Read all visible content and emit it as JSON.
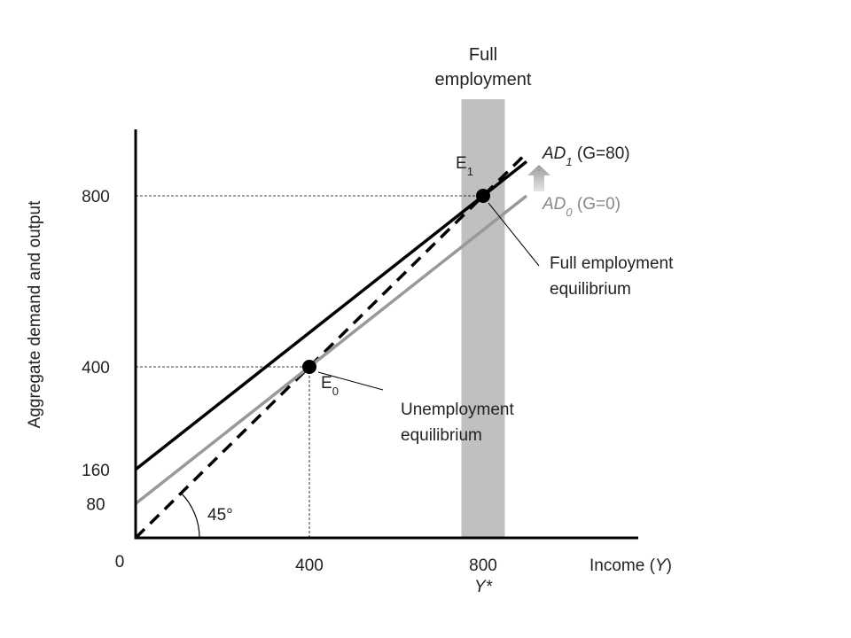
{
  "chart_data": {
    "type": "line",
    "title": "",
    "xlabel": "Income (Y)",
    "xlabel_parts": {
      "prefix": "Income (",
      "var": "Y",
      "suffix": ")"
    },
    "ylabel": "Aggregate demand and output",
    "xlim": [
      0,
      1160
    ],
    "ylim": [
      0,
      920
    ],
    "x_ticks": [
      {
        "value": 400,
        "label": "400"
      },
      {
        "value": 800,
        "label": "800"
      }
    ],
    "x_sub_label": {
      "value": 800,
      "label": "Y*"
    },
    "y_ticks": [
      {
        "value": 800,
        "label": "800"
      },
      {
        "value": 400,
        "label": "400"
      },
      {
        "value": 160,
        "label": "160"
      },
      {
        "value": 80,
        "label": "80"
      }
    ],
    "origin_label": "0",
    "series": [
      {
        "key": "ad1",
        "name": "AD1 (G=80)",
        "label_main": "AD",
        "label_sub": "1",
        "label_rest": " (G=80)",
        "intercept": 160,
        "slope": 0.8,
        "x_range": [
          0,
          900
        ],
        "color": "#000000",
        "style": "solid"
      },
      {
        "key": "ad0",
        "name": "AD0 (G=0)",
        "label_main": "AD",
        "label_sub": "0",
        "label_rest": " (G=0)",
        "intercept": 80,
        "slope": 0.8,
        "x_range": [
          0,
          900
        ],
        "color": "#999999",
        "style": "solid"
      },
      {
        "key": "line45",
        "name": "45°",
        "intercept": 0,
        "slope": 1,
        "x_range": [
          0,
          900
        ],
        "color": "#000000",
        "style": "dashed"
      }
    ],
    "points": [
      {
        "key": "e0",
        "main": "E",
        "sub": "0",
        "x": 400,
        "y": 400
      },
      {
        "key": "e1",
        "main": "E",
        "sub": "1",
        "x": 800,
        "y": 800
      }
    ],
    "band": {
      "label_line1": "Full",
      "label_line2": "employment",
      "x_range": [
        750,
        850
      ],
      "color": "#c0c0c0"
    },
    "annotations": {
      "angle_label": "45°",
      "unemployment_line1": "Unemployment",
      "unemployment_line2": "equilibrium",
      "full_line1": "Full employment",
      "full_line2": "equilibrium"
    },
    "grid": false,
    "legend": "none"
  }
}
